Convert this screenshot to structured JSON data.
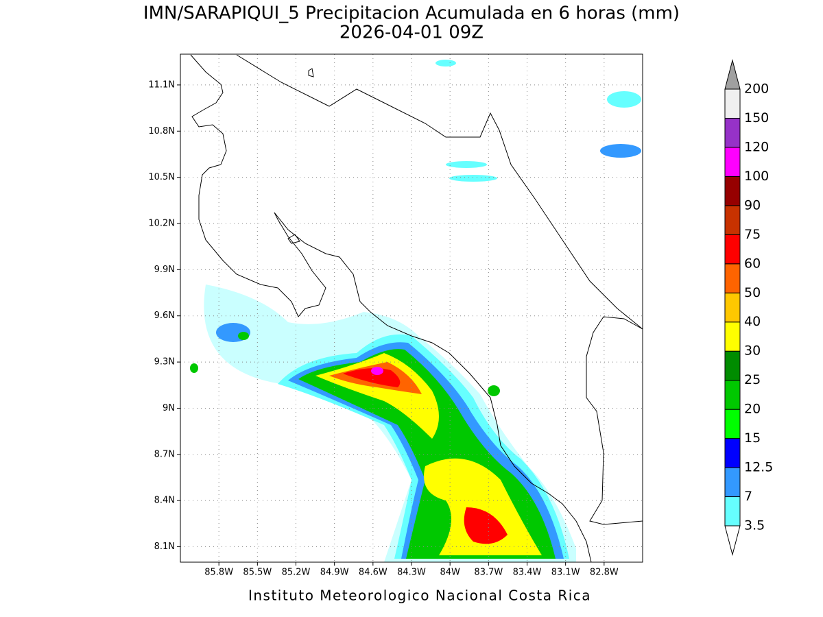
{
  "title": [
    "IMN/SARAPIQUI_5 Precipitacion Acumulada en 6 horas (mm)",
    "2026-04-01 09Z"
  ],
  "map": {
    "xlim": [
      -86.1,
      -82.5
    ],
    "ylim": [
      8.0,
      11.3
    ],
    "xticks": [
      {
        "value": -85.8,
        "label": "85.8W"
      },
      {
        "value": -85.5,
        "label": "85.5W"
      },
      {
        "value": -85.2,
        "label": "85.2W"
      },
      {
        "value": -84.9,
        "label": "84.9W"
      },
      {
        "value": -84.6,
        "label": "84.6W"
      },
      {
        "value": -84.3,
        "label": "84.3W"
      },
      {
        "value": -84.0,
        "label": "84W"
      },
      {
        "value": -83.7,
        "label": "83.7W"
      },
      {
        "value": -83.4,
        "label": "83.4W"
      },
      {
        "value": -83.1,
        "label": "83.1W"
      },
      {
        "value": -82.8,
        "label": "82.8W"
      }
    ],
    "yticks": [
      {
        "value": 8.1,
        "label": "8.1N"
      },
      {
        "value": 8.4,
        "label": "8.4N"
      },
      {
        "value": 8.7,
        "label": "8.7N"
      },
      {
        "value": 9.0,
        "label": "9N"
      },
      {
        "value": 9.3,
        "label": "9.3N"
      },
      {
        "value": 9.6,
        "label": "9.6N"
      },
      {
        "value": 9.9,
        "label": "9.9N"
      },
      {
        "value": 10.2,
        "label": "10.2N"
      },
      {
        "value": 10.5,
        "label": "10.5N"
      },
      {
        "value": 10.8,
        "label": "10.8N"
      },
      {
        "value": 11.1,
        "label": "11.1N"
      }
    ],
    "grid": true
  },
  "colorbar": {
    "levels": [
      3.5,
      7,
      12.5,
      15,
      20,
      25,
      30,
      40,
      50,
      60,
      75,
      90,
      100,
      120,
      150,
      200
    ],
    "colors": [
      "#66ffff",
      "#3399ff",
      "#0000ff",
      "#00ff00",
      "#00c800",
      "#008c00",
      "#ffff00",
      "#ffc800",
      "#ff6400",
      "#ff0000",
      "#c83200",
      "#960000",
      "#ff00ff",
      "#9632c8",
      "#f0f0f0"
    ],
    "over_color": "#a0a0a0",
    "under_color": "#ffffff"
  },
  "credit": "Instituto Meteorologico Nacional Costa Rica"
}
